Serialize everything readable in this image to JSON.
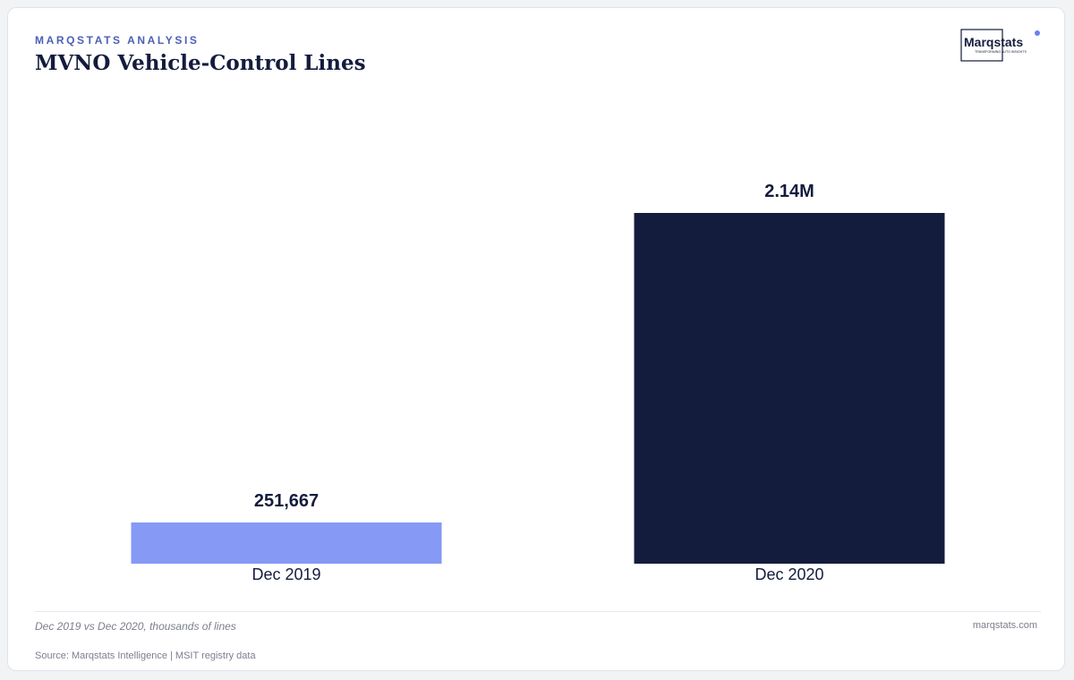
{
  "header": {
    "kicker": "MARQSTATS ANALYSIS",
    "title": "MVNO Vehicle-Control Lines"
  },
  "logo": {
    "name": "Marqstats",
    "tagline": "TRANSFORMING AUTO INSIGHTS",
    "icon": "marqstats-logo"
  },
  "chart_data": {
    "type": "bar",
    "categories": [
      "Dec 2019",
      "Dec 2020"
    ],
    "values": [
      251667,
      2140000
    ],
    "value_labels": [
      "251,667",
      "2.14M"
    ],
    "colors": [
      "#8599f5",
      "#141c3d"
    ],
    "title": "MVNO Vehicle-Control Lines",
    "xlabel": "",
    "ylabel": "",
    "ylim": [
      0,
      2140000
    ],
    "grid": false,
    "legend": "none"
  },
  "footer": {
    "note": "Dec 2019 vs Dec 2020, thousands of lines",
    "site": "marqstats.com",
    "source": "Source: Marqstats Intelligence | MSIT registry data"
  }
}
